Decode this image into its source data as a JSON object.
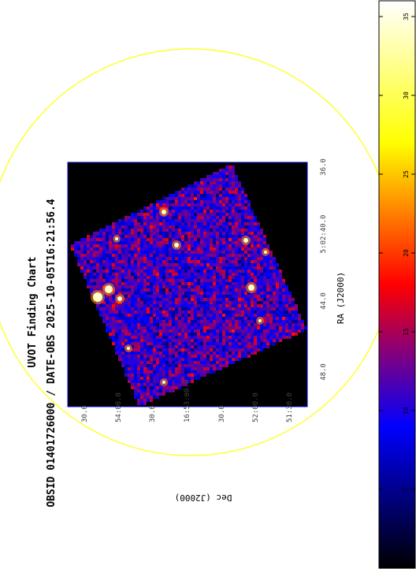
{
  "chart_data": {
    "type": "heatmap",
    "title": "UVOT Finding Chart",
    "subtitle": "OBSID 01401726000 / DATE-OBS 2025-10-05T16:21:56.4",
    "xlabel": "RA (J2000)",
    "ylabel": "Dec (J2000)",
    "ra_ticks": [
      "48.0",
      "44.0",
      "5:02:40.0",
      "36.0"
    ],
    "dec_ticks": [
      "30.0",
      "54:00.0",
      "30.0",
      "16:53:00.0",
      "30.0",
      "52:00.0",
      "51:30.0"
    ],
    "colorbar": {
      "min": 0,
      "max": 36,
      "ticks": [
        0,
        5,
        10,
        15,
        20,
        25,
        30,
        35
      ],
      "colormap": [
        "#000000",
        "#0000ff",
        "#ff0000",
        "#ffff00",
        "#ffffff"
      ]
    },
    "colors": {
      "frame": "#0000cc",
      "circle": "#ffff33",
      "background": "#000000"
    }
  }
}
